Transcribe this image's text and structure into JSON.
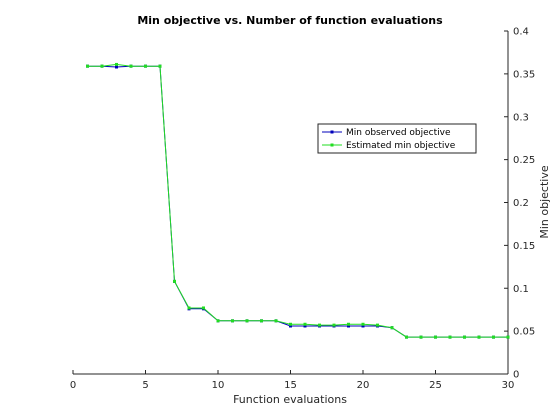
{
  "chart_data": {
    "type": "line",
    "title": "Min objective vs. Number of function evaluations",
    "xlabel": "Function evaluations",
    "ylabel": "Min objective",
    "xlim": [
      0,
      30
    ],
    "ylim": [
      0,
      0.4
    ],
    "xticks": [
      0,
      5,
      10,
      15,
      20,
      25,
      30
    ],
    "yticks": [
      0,
      0.05,
      0.1,
      0.15,
      0.2,
      0.25,
      0.3,
      0.35,
      0.4
    ],
    "xtick_labels": [
      "0",
      "5",
      "10",
      "15",
      "20",
      "25",
      "30"
    ],
    "ytick_labels": [
      "0",
      "0.05",
      "0.1",
      "0.15",
      "0.2",
      "0.25",
      "0.3",
      "0.35",
      "0.4"
    ],
    "y_axis_side": "right",
    "grid": false,
    "legend_position": "center-right",
    "series": [
      {
        "name": "Min observed objective",
        "color": "#0000bb",
        "x": [
          1,
          2,
          3,
          4,
          5,
          6,
          7,
          8,
          9,
          10,
          11,
          12,
          13,
          14,
          15,
          16,
          17,
          18,
          19,
          20,
          21,
          22,
          23,
          24,
          25,
          26,
          27,
          28,
          29,
          30
        ],
        "y": [
          0.359,
          0.359,
          0.358,
          0.359,
          0.359,
          0.359,
          0.108,
          0.076,
          0.076,
          0.062,
          0.062,
          0.062,
          0.062,
          0.062,
          0.056,
          0.056,
          0.056,
          0.056,
          0.056,
          0.056,
          0.056,
          0.054,
          0.043,
          0.043,
          0.043,
          0.043,
          0.043,
          0.043,
          0.043,
          0.043
        ]
      },
      {
        "name": "Estimated min objective",
        "color": "#22dd22",
        "x": [
          1,
          2,
          3,
          4,
          5,
          6,
          7,
          8,
          9,
          10,
          11,
          12,
          13,
          14,
          15,
          16,
          17,
          18,
          19,
          20,
          21,
          22,
          23,
          24,
          25,
          26,
          27,
          28,
          29,
          30
        ],
        "y": [
          0.359,
          0.359,
          0.361,
          0.359,
          0.359,
          0.359,
          0.108,
          0.077,
          0.077,
          0.062,
          0.062,
          0.062,
          0.062,
          0.062,
          0.058,
          0.058,
          0.057,
          0.057,
          0.058,
          0.058,
          0.057,
          0.054,
          0.043,
          0.043,
          0.043,
          0.043,
          0.043,
          0.043,
          0.043,
          0.043
        ]
      }
    ]
  }
}
